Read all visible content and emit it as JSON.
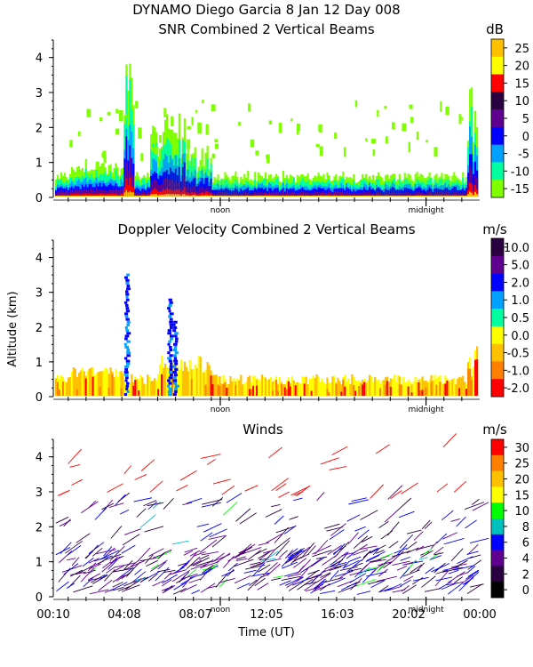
{
  "header": {
    "line1": "DYNAMO Diego Garcia   8 Jan 12 Day 008"
  },
  "chart_data": [
    {
      "type": "heatmap",
      "title": "SNR Combined 2 Vertical Beams",
      "ylabel": "",
      "ylim": [
        0,
        4.5
      ],
      "yticks": [
        "0",
        "1",
        "2",
        "3",
        "4"
      ],
      "xlim_hours": [
        0.1667,
        24.0
      ],
      "markers": [
        "noon",
        "midnight"
      ],
      "colorbar": {
        "unit": "dB",
        "labels": [
          "25",
          "20",
          "15",
          "10",
          "5",
          "0",
          "-5",
          "-10",
          "-15"
        ],
        "colors": [
          "#ffc000",
          "#ffff00",
          "#ff0000",
          "#2a0040",
          "#600090",
          "#0000ff",
          "#00a0ff",
          "#00ffa0",
          "#80ff00"
        ]
      }
    },
    {
      "type": "heatmap",
      "title": "Doppler Velocity Combined 2 Vertical Beams",
      "ylabel": "Altitude (km)",
      "ylim": [
        0,
        4.5
      ],
      "yticks": [
        "0",
        "1",
        "2",
        "3",
        "4"
      ],
      "xlim_hours": [
        0.1667,
        24.0
      ],
      "markers": [
        "noon",
        "midnight"
      ],
      "colorbar": {
        "unit": "m/s",
        "labels": [
          "10.0",
          "5.0",
          "2.0",
          "1.0",
          "0.5",
          "0.0",
          "-0.5",
          "-1.0",
          "-2.0"
        ],
        "colors": [
          "#2a0040",
          "#600090",
          "#0000ff",
          "#00a0ff",
          "#00ffa0",
          "#ffff00",
          "#ffc000",
          "#ff8000",
          "#ff0000"
        ]
      }
    },
    {
      "type": "scatter",
      "title": "Winds",
      "ylabel": "",
      "xlabel": "Time (UT)",
      "ylim": [
        0,
        4.5
      ],
      "yticks": [
        "0",
        "1",
        "2",
        "3",
        "4"
      ],
      "xlim_hours": [
        0.1667,
        24.0
      ],
      "xticks": [
        "00:10",
        "04:08",
        "08:07",
        "12:05",
        "16:03",
        "20:02",
        "00:00"
      ],
      "markers": [
        "noon",
        "midnight"
      ],
      "colorbar": {
        "unit": "m/s",
        "labels": [
          "30",
          "25",
          "20",
          "15",
          "10",
          "8",
          "6",
          "4",
          "2",
          "0"
        ],
        "colors": [
          "#ff0000",
          "#ff8000",
          "#ffc000",
          "#ffff00",
          "#00ff00",
          "#00c0c0",
          "#0000ff",
          "#600090",
          "#2a0040",
          "#000000"
        ]
      }
    }
  ]
}
